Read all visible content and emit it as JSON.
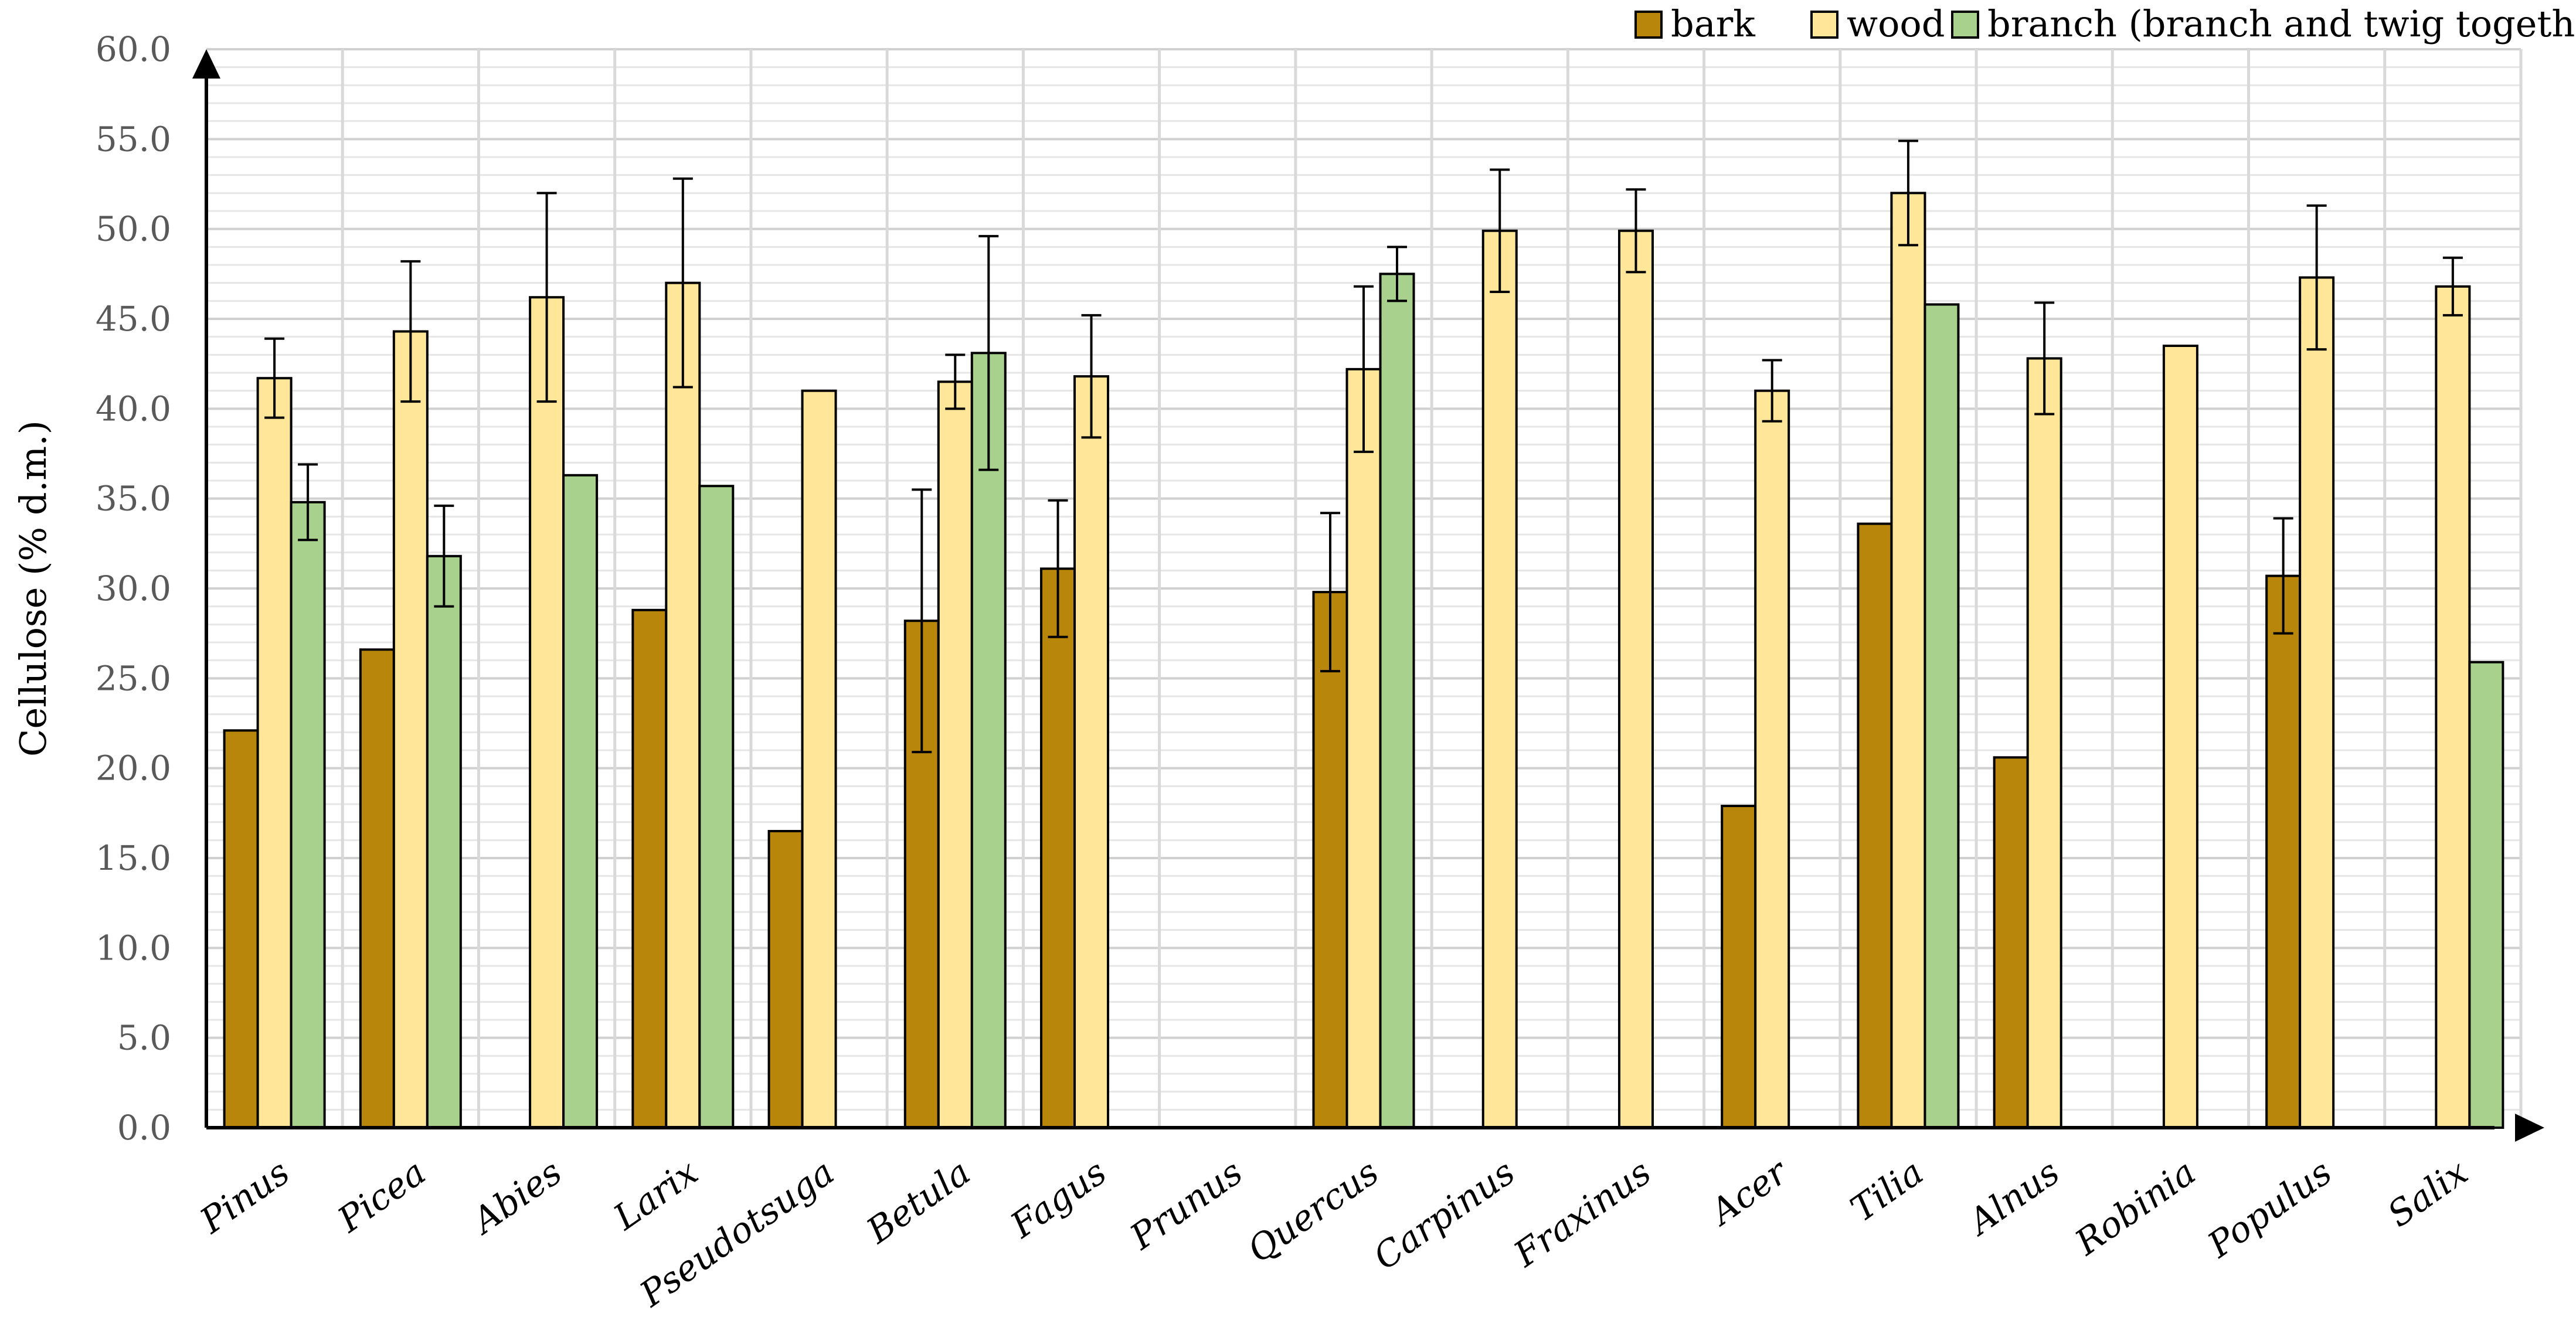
{
  "chart_data": {
    "type": "bar",
    "title": "",
    "xlabel": "",
    "ylabel": "Cellulose (% d.m.)",
    "ylim": [
      0,
      60
    ],
    "ytick_step": 5,
    "ytick_labels": [
      "0.0",
      "5.0",
      "10.0",
      "15.0",
      "20.0",
      "25.0",
      "30.0",
      "35.0",
      "40.0",
      "45.0",
      "50.0",
      "55.0",
      "60.0"
    ],
    "minor_grid_step": 1,
    "grid": true,
    "legend_position": "top-right",
    "categories": [
      "Pinus",
      "Picea",
      "Abies",
      "Larix",
      "Pseudotsuga",
      "Betula",
      "Fagus",
      "Prunus",
      "Quercus",
      "Carpinus",
      "Fraxinus",
      "Acer",
      "Tilia",
      "Alnus",
      "Robinia",
      "Populus",
      "Salix"
    ],
    "series": [
      {
        "name": "bark",
        "color": "#b8860b",
        "values": [
          22.1,
          26.6,
          null,
          28.8,
          16.5,
          28.2,
          31.1,
          null,
          29.8,
          null,
          null,
          17.9,
          33.6,
          20.6,
          null,
          30.7,
          null
        ],
        "errors": [
          null,
          null,
          null,
          null,
          null,
          7.3,
          3.8,
          null,
          4.4,
          null,
          null,
          null,
          null,
          null,
          null,
          3.2,
          null
        ]
      },
      {
        "name": "wood",
        "color": "#ffe699",
        "values": [
          41.7,
          44.3,
          46.2,
          47.0,
          41.0,
          41.5,
          41.8,
          null,
          42.2,
          49.9,
          49.9,
          41.0,
          52.0,
          42.8,
          43.5,
          47.3,
          46.8
        ],
        "errors": [
          2.2,
          3.9,
          5.8,
          5.8,
          null,
          1.5,
          3.4,
          null,
          4.6,
          3.4,
          2.3,
          1.7,
          2.9,
          3.1,
          null,
          4.0,
          1.6
        ]
      },
      {
        "name": "branch (branch and twig together)",
        "color": "#a9d18e",
        "values": [
          34.8,
          31.8,
          36.3,
          35.7,
          null,
          43.1,
          null,
          null,
          47.5,
          null,
          null,
          null,
          45.8,
          null,
          null,
          null,
          25.9
        ],
        "errors": [
          2.1,
          2.8,
          null,
          null,
          null,
          6.5,
          null,
          null,
          1.5,
          null,
          null,
          null,
          null,
          null,
          null,
          null,
          null
        ]
      }
    ]
  }
}
